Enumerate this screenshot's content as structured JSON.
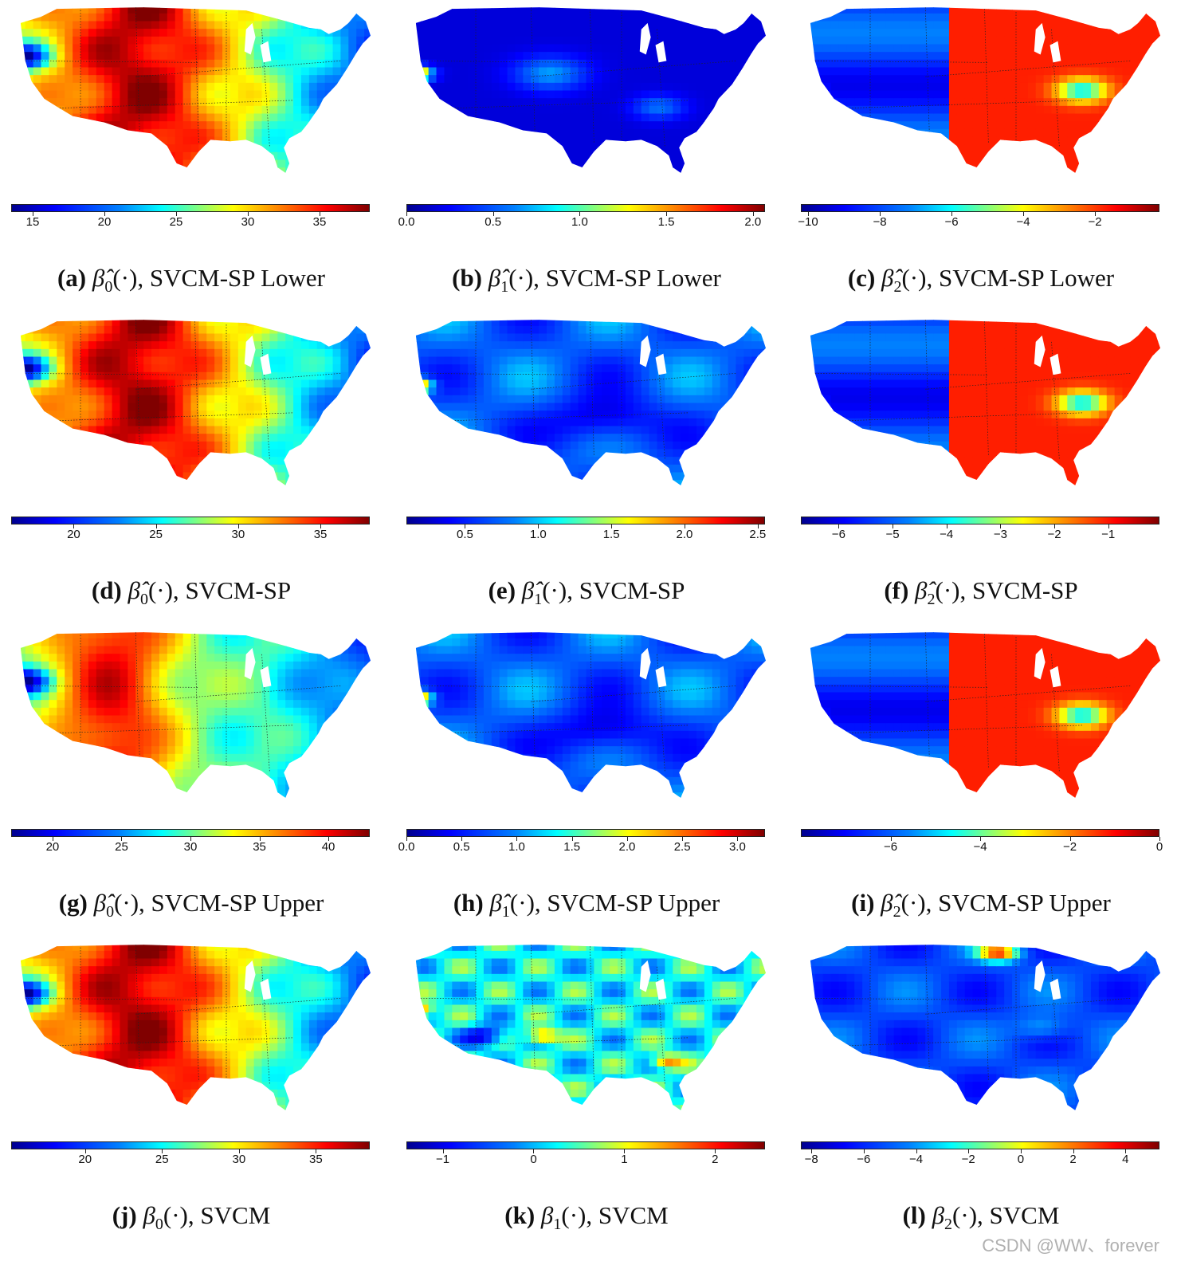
{
  "colormap": "jet",
  "colors": {
    "low": "#00008f",
    "mid": "#80ff80",
    "high": "#800000"
  },
  "panels": [
    {
      "id": "a",
      "caption_letter": "(a)",
      "symbol": "β̂",
      "sub": "0",
      "arg": "(·),",
      "method": "SVCM-SP Lower",
      "ticks": [
        "15",
        "20",
        "25",
        "30",
        "35"
      ],
      "tick_values": [
        15,
        20,
        25,
        30,
        35
      ],
      "range": [
        13.5,
        38.5
      ],
      "pattern": "b0"
    },
    {
      "id": "b",
      "caption_letter": "(b)",
      "symbol": "β̂",
      "sub": "1",
      "arg": "(·),",
      "method": "SVCM-SP Lower",
      "ticks": [
        "0.0",
        "0.5",
        "1.0",
        "1.5",
        "2.0"
      ],
      "tick_values": [
        0,
        0.5,
        1,
        1.5,
        2
      ],
      "range": [
        0,
        2.07
      ],
      "pattern": "b1low"
    },
    {
      "id": "c",
      "caption_letter": "(c)",
      "symbol": "β̂",
      "sub": "2",
      "arg": "(·),",
      "method": "SVCM-SP Lower",
      "ticks": [
        "−10",
        "−8",
        "−6",
        "−4",
        "−2"
      ],
      "tick_values": [
        -10,
        -8,
        -6,
        -4,
        -2
      ],
      "range": [
        -10.2,
        -0.2
      ],
      "pattern": "b2"
    },
    {
      "id": "d",
      "caption_letter": "(d)",
      "symbol": "β̂",
      "sub": "0",
      "arg": "(·),",
      "method": "SVCM-SP",
      "ticks": [
        "20",
        "25",
        "30",
        "35"
      ],
      "tick_values": [
        20,
        25,
        30,
        35
      ],
      "range": [
        16.2,
        38.0
      ],
      "pattern": "b0"
    },
    {
      "id": "e",
      "caption_letter": "(e)",
      "symbol": "β̂",
      "sub": "1",
      "arg": "(·),",
      "method": "SVCM-SP",
      "ticks": [
        "0.5",
        "1.0",
        "1.5",
        "2.0",
        "2.5"
      ],
      "tick_values": [
        0.5,
        1,
        1.5,
        2,
        2.5
      ],
      "range": [
        0.1,
        2.55
      ],
      "pattern": "b1"
    },
    {
      "id": "f",
      "caption_letter": "(f)",
      "symbol": "β̂",
      "sub": "2",
      "arg": "(·),",
      "method": "SVCM-SP",
      "ticks": [
        "−6",
        "−5",
        "−4",
        "−3",
        "−2",
        "−1"
      ],
      "tick_values": [
        -6,
        -5,
        -4,
        -3,
        -2,
        -1
      ],
      "range": [
        -6.7,
        -0.05
      ],
      "pattern": "b2"
    },
    {
      "id": "g",
      "caption_letter": "(g)",
      "symbol": "β̂",
      "sub": "0",
      "arg": "(·),",
      "method": "SVCM-SP Upper",
      "ticks": [
        "20",
        "25",
        "30",
        "35",
        "40"
      ],
      "tick_values": [
        20,
        25,
        30,
        35,
        40
      ],
      "range": [
        17.0,
        43.0
      ],
      "pattern": "b0up"
    },
    {
      "id": "h",
      "caption_letter": "(h)",
      "symbol": "β̂",
      "sub": "1",
      "arg": "(·),",
      "method": "SVCM-SP Upper",
      "ticks": [
        "0.0",
        "0.5",
        "1.0",
        "1.5",
        "2.0",
        "2.5",
        "3.0"
      ],
      "tick_values": [
        0,
        0.5,
        1,
        1.5,
        2,
        2.5,
        3
      ],
      "range": [
        0,
        3.25
      ],
      "pattern": "b1"
    },
    {
      "id": "i",
      "caption_letter": "(i)",
      "symbol": "β̂",
      "sub": "2",
      "arg": "(·),",
      "method": "SVCM-SP Upper",
      "ticks": [
        "−6",
        "−4",
        "−2",
        "0"
      ],
      "tick_values": [
        -6,
        -4,
        -2,
        0
      ],
      "range": [
        -8.0,
        0.0
      ],
      "pattern": "b2"
    },
    {
      "id": "j",
      "caption_letter": "(j)",
      "symbol": "β",
      "sub": "0",
      "arg": "(·),",
      "method": "SVCM",
      "ticks": [
        "20",
        "25",
        "30",
        "35"
      ],
      "tick_values": [
        20,
        25,
        30,
        35
      ],
      "range": [
        15.2,
        38.5
      ],
      "pattern": "b0"
    },
    {
      "id": "k",
      "caption_letter": "(k)",
      "symbol": "β",
      "sub": "1",
      "arg": "(·),",
      "method": "SVCM",
      "ticks": [
        "−1",
        "0",
        "1",
        "2"
      ],
      "tick_values": [
        -1,
        0,
        1,
        2
      ],
      "range": [
        -1.4,
        2.55
      ],
      "pattern": "b1svcm"
    },
    {
      "id": "l",
      "caption_letter": "(l)",
      "symbol": "β",
      "sub": "2",
      "arg": "(·),",
      "method": "SVCM",
      "ticks": [
        "−8",
        "−6",
        "−4",
        "−2",
        "0",
        "2",
        "4"
      ],
      "tick_values": [
        -8,
        -6,
        -4,
        -2,
        0,
        2,
        4
      ],
      "range": [
        -8.4,
        5.3
      ],
      "pattern": "b2svcm"
    }
  ],
  "watermark": "CSDN @WW、forever"
}
